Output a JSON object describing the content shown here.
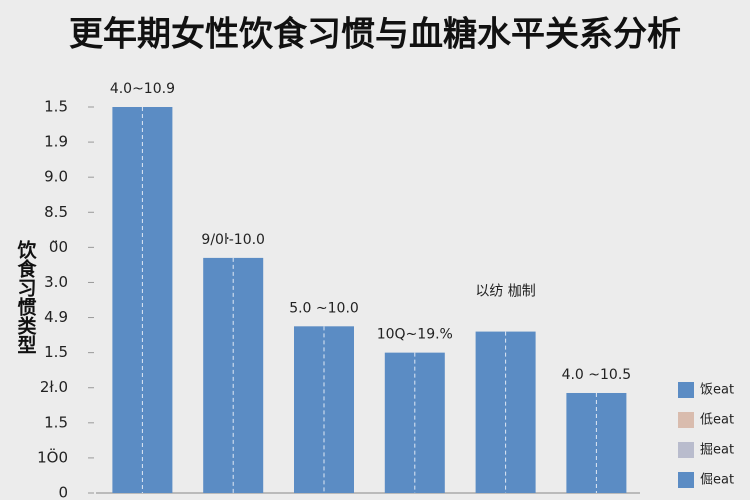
{
  "chart_data": {
    "type": "bar",
    "title": "更年期女性饮食习惯与血糖水平关系分析",
    "y_label": "饮食习惯类型",
    "categories": [
      null,
      null,
      null,
      null,
      null,
      null
    ],
    "values": [
      11,
      6.7,
      4.75,
      4,
      4.6,
      2.85
    ],
    "annotations": [
      "4.0~10.9",
      "9/0ŀ-10.0",
      "5.0 ~10.0",
      "10Q~19.%",
      "以纺 枷制",
      "4.0 ~10.5"
    ],
    "color": "#5b8cc4",
    "ylim": [
      0,
      11.2
    ],
    "yticks": [
      {
        "value": 0,
        "label": "0"
      },
      {
        "value": 1,
        "label": "1Ö0"
      },
      {
        "value": 2,
        "label": "1.5"
      },
      {
        "value": 3,
        "label": "2ł.0"
      },
      {
        "value": 4,
        "label": "1.5"
      },
      {
        "value": 5,
        "label": "4.9"
      },
      {
        "value": 6,
        "label": "3.0"
      },
      {
        "value": 7,
        "label": "0̈0"
      },
      {
        "value": 8,
        "label": "8.5"
      },
      {
        "value": 9,
        "label": "9.0"
      },
      {
        "value": 10,
        "label": "1.9"
      },
      {
        "value": 11,
        "label": "1.5"
      }
    ],
    "legend": [
      {
        "name": "饭eat",
        "color": "#5b8cc4"
      },
      {
        "name": "低eat",
        "color": "#d9bcae"
      },
      {
        "name": "掘eat",
        "color": "#b9bccd"
      },
      {
        "name": "倔eat",
        "color": "#5b8cc4"
      }
    ]
  }
}
